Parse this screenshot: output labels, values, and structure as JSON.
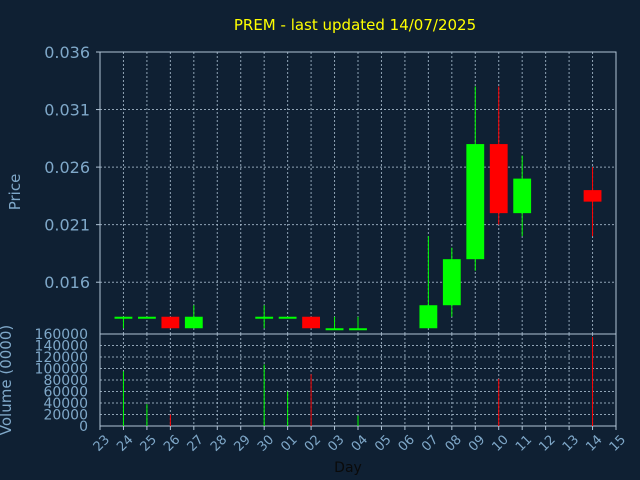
{
  "colors": {
    "background": "#0f2033",
    "axis_text": "#7fa8c9",
    "title": "#ffff00",
    "grid": "#b0c4d6",
    "up": "#00ff00",
    "down": "#ff0000"
  },
  "chart_data": [
    {
      "type": "candlestick",
      "title": "PREM - last updated 14/07/2025",
      "ylabel": "Price",
      "ylim": [
        0.0115,
        0.036
      ],
      "yticks": [
        "0.036",
        "0.031",
        "0.026",
        "0.021",
        "0.016"
      ],
      "ytick_values": [
        0.036,
        0.031,
        0.026,
        0.021,
        0.016
      ],
      "grid": true,
      "candles": [
        {
          "day": "24",
          "open": 0.013,
          "high": 0.013,
          "low": 0.012,
          "close": 0.013
        },
        {
          "day": "25",
          "open": 0.013,
          "high": 0.013,
          "low": 0.013,
          "close": 0.013
        },
        {
          "day": "26",
          "open": 0.013,
          "high": 0.013,
          "low": 0.012,
          "close": 0.012
        },
        {
          "day": "27",
          "open": 0.012,
          "high": 0.014,
          "low": 0.012,
          "close": 0.013
        },
        {
          "day": "30",
          "open": 0.013,
          "high": 0.014,
          "low": 0.012,
          "close": 0.013
        },
        {
          "day": "01",
          "open": 0.013,
          "high": 0.013,
          "low": 0.013,
          "close": 0.013
        },
        {
          "day": "02",
          "open": 0.013,
          "high": 0.013,
          "low": 0.012,
          "close": 0.012
        },
        {
          "day": "03",
          "open": 0.012,
          "high": 0.013,
          "low": 0.012,
          "close": 0.012
        },
        {
          "day": "04",
          "open": 0.012,
          "high": 0.013,
          "low": 0.012,
          "close": 0.012
        },
        {
          "day": "07",
          "open": 0.012,
          "high": 0.02,
          "low": 0.012,
          "close": 0.014
        },
        {
          "day": "08",
          "open": 0.014,
          "high": 0.019,
          "low": 0.013,
          "close": 0.018
        },
        {
          "day": "09",
          "open": 0.018,
          "high": 0.033,
          "low": 0.017,
          "close": 0.028
        },
        {
          "day": "10",
          "open": 0.028,
          "high": 0.033,
          "low": 0.021,
          "close": 0.022
        },
        {
          "day": "11",
          "open": 0.022,
          "high": 0.027,
          "low": 0.02,
          "close": 0.025
        },
        {
          "day": "14",
          "open": 0.024,
          "high": 0.026,
          "low": 0.02,
          "close": 0.023
        }
      ]
    },
    {
      "type": "bar",
      "ylabel": "Volume (0000)",
      "xlabel": "Day",
      "ylim": [
        0,
        160000
      ],
      "yticks": [
        "160000",
        "140000",
        "120000",
        "100000",
        "80000",
        "60000",
        "40000",
        "20000",
        "0"
      ],
      "ytick_values": [
        160000,
        140000,
        120000,
        100000,
        80000,
        60000,
        40000,
        20000,
        0
      ],
      "categories": [
        "23",
        "24",
        "25",
        "26",
        "27",
        "28",
        "29",
        "30",
        "01",
        "02",
        "03",
        "04",
        "05",
        "06",
        "07",
        "08",
        "09",
        "10",
        "11",
        "12",
        "13",
        "14",
        "15"
      ],
      "volumes": [
        {
          "day": "24",
          "value": 95000,
          "direction": "up"
        },
        {
          "day": "25",
          "value": 38000,
          "direction": "up"
        },
        {
          "day": "26",
          "value": 20000,
          "direction": "down"
        },
        {
          "day": "30",
          "value": 107000,
          "direction": "up"
        },
        {
          "day": "01",
          "value": 60000,
          "direction": "up"
        },
        {
          "day": "02",
          "value": 90000,
          "direction": "down"
        },
        {
          "day": "04",
          "value": 18000,
          "direction": "up"
        },
        {
          "day": "10",
          "value": 82000,
          "direction": "down"
        },
        {
          "day": "14",
          "value": 155000,
          "direction": "down"
        }
      ]
    }
  ]
}
